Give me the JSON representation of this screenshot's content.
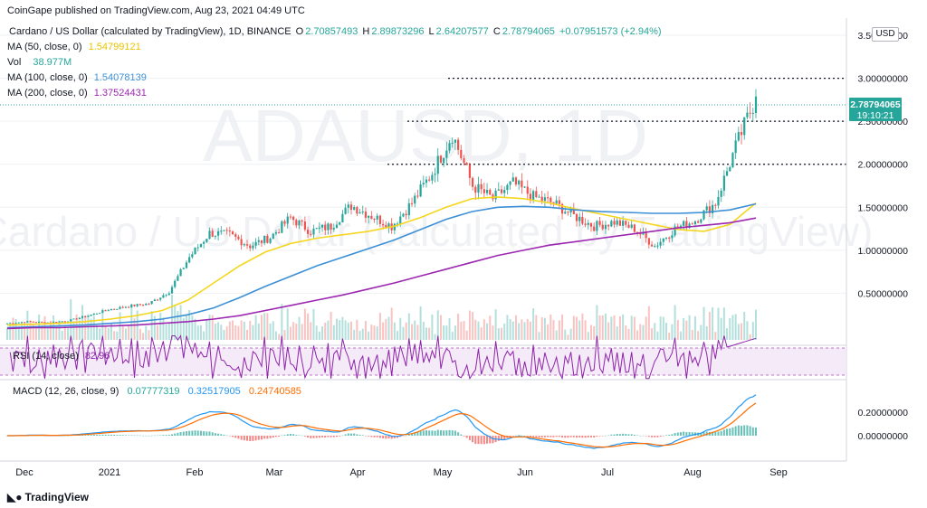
{
  "header": {
    "publisher_line": "CoinGape published on TradingView.com, Aug 23, 2021 04:49 UTC"
  },
  "legend": {
    "symbol_line": "Cardano / US Dollar (calculated by TradingView), 1D, BINANCE",
    "ohlc": {
      "o_label": "O",
      "o": "2.70857493",
      "h_label": "H",
      "h": "2.89873296",
      "l_label": "L",
      "l": "2.64207577",
      "c_label": "C",
      "c": "2.78794065",
      "change": "+0.07951573 (+2.94%)"
    },
    "ma50": {
      "label": "MA (50, close, 0)",
      "value": "1.54799121",
      "color": "#f5d61f"
    },
    "vol": {
      "label": "Vol",
      "value": "38.977M"
    },
    "ma100": {
      "label": "MA (100, close, 0)",
      "value": "1.54078139",
      "color": "#3d8fd6"
    },
    "ma200": {
      "label": "MA (200, close, 0)",
      "value": "1.37524431",
      "color": "#9c27b0"
    }
  },
  "currency_label": "USD",
  "watermark": {
    "ticker": "ADAUSD, 1D",
    "name": "Cardano / US Dollar (calculated by TradingView)"
  },
  "price_badge": {
    "value": "2.78794065",
    "countdown": "19:10:21",
    "color": "#26a69a"
  },
  "rsi": {
    "label": "RSI (14, close)",
    "value": "82.96",
    "color": "#8e24aa"
  },
  "macd": {
    "label": "MACD (12, 26, close, 9)",
    "hist_value": "0.07777319",
    "macd_value": "0.32517905",
    "signal_value": "0.24740585",
    "macd_color": "#2196f3",
    "signal_color": "#ff6d00",
    "axis_ticks": [
      "0.20000000",
      "0.00000000"
    ]
  },
  "footer_brand": "TradingView",
  "colors": {
    "up": "#26a69a",
    "down": "#ef5350",
    "grid": "#eef0f4",
    "axis_text": "#131722"
  },
  "chart_data": {
    "type": "candlestick",
    "title": "Cardano / US Dollar (calculated by TradingView), 1D, BINANCE",
    "x_axis_labels": [
      "Dec",
      "2021",
      "Feb",
      "Mar",
      "Apr",
      "May",
      "Jun",
      "Jul",
      "Aug",
      "Sep"
    ],
    "y_axis_ticks": [
      "3.50000000",
      "3.00000000",
      "2.50000000",
      "2.00000000",
      "1.50000000",
      "1.00000000",
      "0.50000000"
    ],
    "ylim": [
      0,
      3.7
    ],
    "horizontal_levels": [
      3.0,
      2.5,
      2.0
    ],
    "price_series_weekly_close": [
      0.15,
      0.17,
      0.16,
      0.18,
      0.24,
      0.31,
      0.35,
      0.38,
      0.52,
      0.92,
      1.2,
      1.18,
      1.05,
      1.15,
      1.38,
      1.22,
      1.28,
      1.52,
      1.4,
      1.28,
      1.55,
      1.9,
      2.35,
      1.75,
      1.6,
      1.78,
      1.62,
      1.55,
      1.4,
      1.28,
      1.33,
      1.25,
      1.05,
      1.25,
      1.35,
      1.55,
      2.2,
      2.78
    ],
    "series": [
      {
        "name": "MA (50, close, 0)",
        "values": [
          0.13,
          0.14,
          0.15,
          0.17,
          0.2,
          0.24,
          0.3,
          0.42,
          0.62,
          0.82,
          0.98,
          1.08,
          1.14,
          1.18,
          1.22,
          1.28,
          1.38,
          1.5,
          1.6,
          1.62,
          1.6,
          1.55,
          1.48,
          1.42,
          1.36,
          1.3,
          1.24,
          1.22,
          1.3,
          1.55
        ]
      },
      {
        "name": "MA (100, close, 0)",
        "values": [
          0.1,
          0.11,
          0.12,
          0.13,
          0.15,
          0.17,
          0.2,
          0.25,
          0.33,
          0.45,
          0.58,
          0.7,
          0.82,
          0.92,
          1.02,
          1.12,
          1.24,
          1.36,
          1.45,
          1.5,
          1.51,
          1.5,
          1.47,
          1.45,
          1.44,
          1.43,
          1.43,
          1.44,
          1.47,
          1.54
        ]
      },
      {
        "name": "MA (200, close, 0)",
        "values": [
          0.09,
          0.1,
          0.1,
          0.11,
          0.12,
          0.13,
          0.15,
          0.17,
          0.2,
          0.24,
          0.3,
          0.36,
          0.42,
          0.48,
          0.55,
          0.62,
          0.7,
          0.78,
          0.86,
          0.94,
          1.0,
          1.06,
          1.1,
          1.14,
          1.18,
          1.22,
          1.26,
          1.29,
          1.32,
          1.375
        ]
      }
    ]
  }
}
